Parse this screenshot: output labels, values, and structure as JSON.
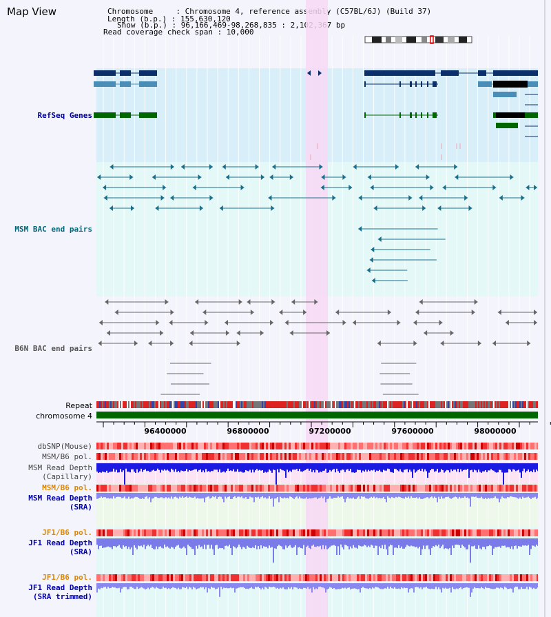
{
  "view": {
    "title": "Map View"
  },
  "info": {
    "chromosome": "Chromosome     : Chromosome 4, reference assembly (C57BL/6J) (Build 37)",
    "length": "Length (b.p.) : 155,630,120",
    "show": "Show (b.p.) : 96,166,469-98,268,835 : 2,102,367 bp",
    "coverage": "Read coverage check span : 10,000"
  },
  "tracks": {
    "refseq": "RefSeq Genes",
    "msm_bac": "MSM BAC end pairs",
    "b6n_bac": "B6N BAC end pairs",
    "repeat": "Repeat",
    "chromosome": "chromosome 4",
    "dbsnp": "dbSNP(Mouse)",
    "msm_pol_1": "MSM/B6 pol.",
    "msm_depth_cap_1": "MSM Read Depth",
    "msm_depth_cap_2": "(Capillary)",
    "msm_pol_2": "MSM/B6 pol.",
    "msm_depth_sra_1": "MSM Read Depth",
    "msm_depth_sra_2": "(SRA)",
    "jf1_pol_1": "JF1/B6 pol.",
    "jf1_depth_sra_1": "JF1 Read Depth",
    "jf1_depth_sra_2": "(SRA)",
    "jf1_pol_2": "JF1/B6 pol.",
    "jf1_depth_trim_1": "JF1 Read Depth",
    "jf1_depth_trim_2": "(SRA trimmed)"
  },
  "axis": {
    "ticks": [
      "96400000",
      "96800000",
      "97200000",
      "97600000",
      "98000000"
    ]
  },
  "colors": {
    "refseq_label": "#000099",
    "msm_label": "#006677",
    "b6n_label": "#555555",
    "orange_label": "#dd8800",
    "blue_label": "#0000aa",
    "highlight": "#f8d8f4",
    "refseq_bg": "#d8eef8",
    "msm_bg": "#e4f8f8",
    "chrom": "#006600"
  }
}
